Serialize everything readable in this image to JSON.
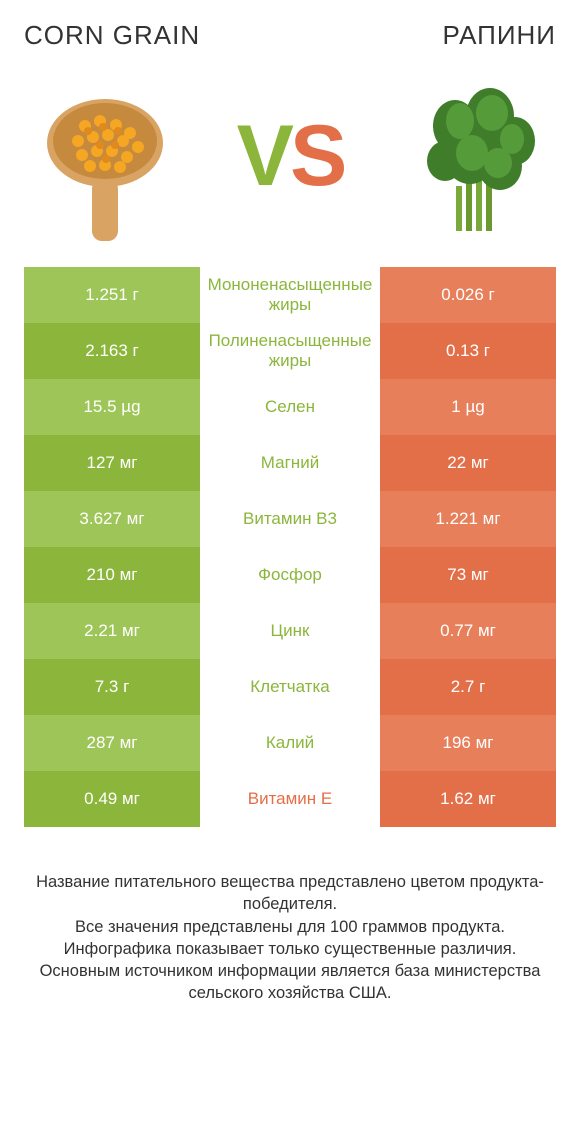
{
  "titles": {
    "left": "CORN GRAIN",
    "right": "РАПИНИ"
  },
  "vs": {
    "v": "V",
    "s": "S"
  },
  "colors": {
    "green_dark": "#8bb63b",
    "green_light": "#9ec557",
    "orange_dark": "#e36f49",
    "orange_light": "#e77f5b",
    "text": "#333333",
    "bg": "#ffffff"
  },
  "rows": [
    {
      "nutrient": "Мононенасыщенные жиры",
      "left": "1.251 г",
      "right": "0.026 г",
      "winner": "left"
    },
    {
      "nutrient": "Полиненасыщенные жиры",
      "left": "2.163 г",
      "right": "0.13 г",
      "winner": "left"
    },
    {
      "nutrient": "Селен",
      "left": "15.5 µg",
      "right": "1 µg",
      "winner": "left"
    },
    {
      "nutrient": "Магний",
      "left": "127 мг",
      "right": "22 мг",
      "winner": "left"
    },
    {
      "nutrient": "Витамин B3",
      "left": "3.627 мг",
      "right": "1.221 мг",
      "winner": "left"
    },
    {
      "nutrient": "Фосфор",
      "left": "210 мг",
      "right": "73 мг",
      "winner": "left"
    },
    {
      "nutrient": "Цинк",
      "left": "2.21 мг",
      "right": "0.77 мг",
      "winner": "left"
    },
    {
      "nutrient": "Клетчатка",
      "left": "7.3 г",
      "right": "2.7 г",
      "winner": "left"
    },
    {
      "nutrient": "Калий",
      "left": "287 мг",
      "right": "196 мг",
      "winner": "left"
    },
    {
      "nutrient": "Витамин E",
      "left": "0.49 мг",
      "right": "1.62 мг",
      "winner": "right"
    }
  ],
  "footnote": "Название питательного вещества представлено цветом продукта-победителя.\nВсе значения представлены для 100 граммов продукта.\nИнфографика показывает только существенные различия.\nОсновным источником информации является база министерства сельского хозяйства США."
}
